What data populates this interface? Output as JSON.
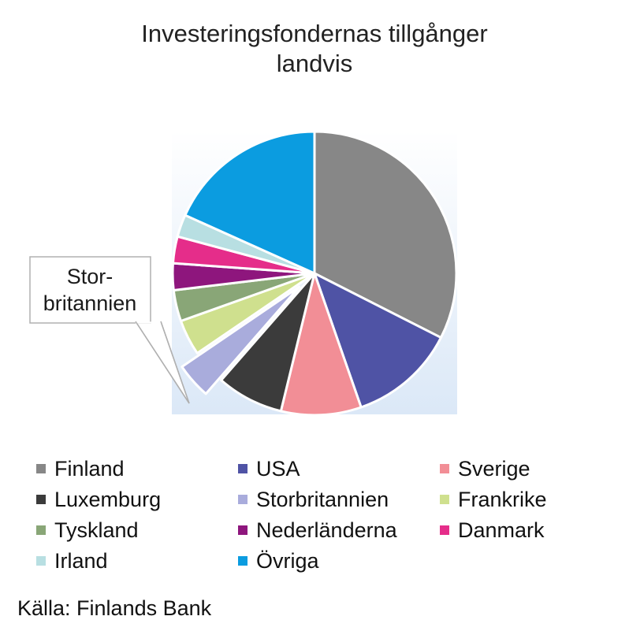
{
  "chart_data": {
    "type": "pie",
    "title": [
      "Investeringsfondernas tillgånger",
      "landvis"
    ],
    "slices": [
      {
        "label": "Finland",
        "value": 32,
        "color": "#878787"
      },
      {
        "label": "USA",
        "value": 12,
        "color": "#4f53a5"
      },
      {
        "label": "Sverige",
        "value": 9,
        "color": "#f28e96"
      },
      {
        "label": "Luxemburg",
        "value": 7.5,
        "color": "#3b3b3b"
      },
      {
        "label": "Storbritannien",
        "value": 4,
        "color": "#a9acdc",
        "exploded": true
      },
      {
        "label": "Frankrike",
        "value": 4,
        "color": "#cfe08e"
      },
      {
        "label": "Tyskland",
        "value": 3.5,
        "color": "#89a677"
      },
      {
        "label": "Nederländerna",
        "value": 3,
        "color": "#8e167d"
      },
      {
        "label": "Danmark",
        "value": 3,
        "color": "#e52d8a"
      },
      {
        "label": "Irland",
        "value": 2.5,
        "color": "#b8dfe2"
      },
      {
        "label": "Övriga",
        "value": 18,
        "color": "#0b9ce0"
      }
    ],
    "callout": {
      "lines": [
        "Stor-",
        "britannien"
      ]
    },
    "legend_position": "bottom",
    "source": "Källa: Finlands Bank"
  }
}
